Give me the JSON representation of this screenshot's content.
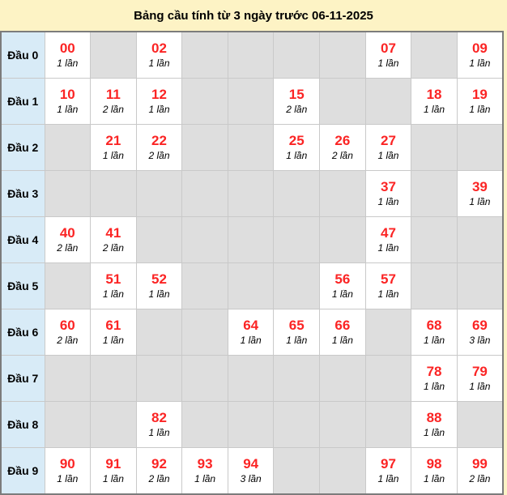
{
  "title": "Bảng cầu tính từ 3 ngày trước 06-11-2025",
  "colors": {
    "page_background": "#fdf3c5",
    "row_header_background": "#d8ebf7",
    "empty_cell_background": "#dedede",
    "value_cell_background": "#ffffff",
    "number_color": "#fb2424",
    "outer_border": "#7c7c7c",
    "inner_border": "#c9c9c9"
  },
  "table": {
    "columns": 10,
    "rows": [
      {
        "label": "Đầu 0",
        "cells": [
          {
            "number": "00",
            "count": "1 lần"
          },
          null,
          {
            "number": "02",
            "count": "1 lần"
          },
          null,
          null,
          null,
          null,
          {
            "number": "07",
            "count": "1 lần"
          },
          null,
          {
            "number": "09",
            "count": "1 lần"
          }
        ]
      },
      {
        "label": "Đầu 1",
        "cells": [
          {
            "number": "10",
            "count": "1 lần"
          },
          {
            "number": "11",
            "count": "2 lần"
          },
          {
            "number": "12",
            "count": "1 lần"
          },
          null,
          null,
          {
            "number": "15",
            "count": "2 lần"
          },
          null,
          null,
          {
            "number": "18",
            "count": "1 lần"
          },
          {
            "number": "19",
            "count": "1 lần"
          }
        ]
      },
      {
        "label": "Đầu 2",
        "cells": [
          null,
          {
            "number": "21",
            "count": "1 lần"
          },
          {
            "number": "22",
            "count": "2 lần"
          },
          null,
          null,
          {
            "number": "25",
            "count": "1 lần"
          },
          {
            "number": "26",
            "count": "2 lần"
          },
          {
            "number": "27",
            "count": "1 lần"
          },
          null,
          null
        ]
      },
      {
        "label": "Đầu 3",
        "cells": [
          null,
          null,
          null,
          null,
          null,
          null,
          null,
          {
            "number": "37",
            "count": "1 lần"
          },
          null,
          {
            "number": "39",
            "count": "1 lần"
          }
        ]
      },
      {
        "label": "Đầu 4",
        "cells": [
          {
            "number": "40",
            "count": "2 lần"
          },
          {
            "number": "41",
            "count": "2 lần"
          },
          null,
          null,
          null,
          null,
          null,
          {
            "number": "47",
            "count": "1 lần"
          },
          null,
          null
        ]
      },
      {
        "label": "Đầu 5",
        "cells": [
          null,
          {
            "number": "51",
            "count": "1 lần"
          },
          {
            "number": "52",
            "count": "1 lần"
          },
          null,
          null,
          null,
          {
            "number": "56",
            "count": "1 lần"
          },
          {
            "number": "57",
            "count": "1 lần"
          },
          null,
          null
        ]
      },
      {
        "label": "Đầu 6",
        "cells": [
          {
            "number": "60",
            "count": "2 lần"
          },
          {
            "number": "61",
            "count": "1 lần"
          },
          null,
          null,
          {
            "number": "64",
            "count": "1 lần"
          },
          {
            "number": "65",
            "count": "1 lần"
          },
          {
            "number": "66",
            "count": "1 lần"
          },
          null,
          {
            "number": "68",
            "count": "1 lần"
          },
          {
            "number": "69",
            "count": "3 lần"
          }
        ]
      },
      {
        "label": "Đầu 7",
        "cells": [
          null,
          null,
          null,
          null,
          null,
          null,
          null,
          null,
          {
            "number": "78",
            "count": "1 lần"
          },
          {
            "number": "79",
            "count": "1 lần"
          }
        ]
      },
      {
        "label": "Đầu 8",
        "cells": [
          null,
          null,
          {
            "number": "82",
            "count": "1 lần"
          },
          null,
          null,
          null,
          null,
          null,
          {
            "number": "88",
            "count": "1 lần"
          },
          null
        ]
      },
      {
        "label": "Đầu 9",
        "cells": [
          {
            "number": "90",
            "count": "1 lần"
          },
          {
            "number": "91",
            "count": "1 lần"
          },
          {
            "number": "92",
            "count": "2 lần"
          },
          {
            "number": "93",
            "count": "1 lần"
          },
          {
            "number": "94",
            "count": "3 lần"
          },
          null,
          null,
          {
            "number": "97",
            "count": "1 lần"
          },
          {
            "number": "98",
            "count": "1 lần"
          },
          {
            "number": "99",
            "count": "2 lần"
          }
        ]
      }
    ]
  }
}
